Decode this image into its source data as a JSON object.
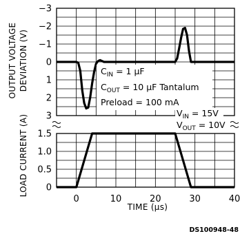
{
  "chart_data": [
    {
      "type": "line",
      "xlabel": "",
      "ylabel": "OUTPUT VOLTAGE\nDEVIATION (V)",
      "xlim": [
        -5,
        40
      ],
      "ylim": [
        -3,
        3
      ],
      "y_ticks": [
        -3,
        -2,
        -1,
        0,
        1,
        2,
        3
      ],
      "grid": true,
      "series": [
        {
          "x": [
            -5,
            0,
            0.5,
            1,
            1.5,
            2,
            2.5,
            3,
            3.5,
            4,
            4.5,
            5,
            5.5,
            6,
            6.5,
            7,
            8,
            25,
            25.5,
            26,
            26.5,
            27,
            27.5,
            28,
            28.5,
            29,
            40
          ],
          "values": [
            0,
            0,
            -0.05,
            -0.5,
            -1.6,
            -2.3,
            -2.6,
            -2.55,
            -2.0,
            -1.2,
            -0.55,
            -0.1,
            0.05,
            0.1,
            0.05,
            0,
            0,
            0,
            0.2,
            0.75,
            1.35,
            1.85,
            1.9,
            1.5,
            0.6,
            0,
            0
          ]
        }
      ]
    },
    {
      "type": "line",
      "xlabel": "TIME (μs)",
      "ylabel": "LOAD CURRENT (A)",
      "xlim": [
        -5,
        40
      ],
      "ylim": [
        0,
        1.5
      ],
      "x_ticks": [
        0,
        10,
        20,
        30,
        40
      ],
      "x_tick_labels": [
        "0",
        "10",
        "20",
        "30",
        "40"
      ],
      "y_ticks": [
        0,
        0.5,
        1,
        1.5
      ],
      "y_tick_labels": [
        "0",
        "0.5",
        "1.0",
        "1.5"
      ],
      "grid": true,
      "series": [
        {
          "x": [
            -5,
            0,
            4,
            25,
            29,
            40
          ],
          "values": [
            0,
            0,
            1.5,
            1.5,
            0,
            0
          ]
        }
      ]
    }
  ],
  "top_y_tick_labels": [
    "3",
    "2",
    "1",
    "0",
    "−1",
    "−2",
    "−3"
  ],
  "annotations": {
    "cin_pre": "C",
    "cin_sub": "IN",
    "cin_post": " = 1 μF",
    "cout_pre": "C",
    "cout_sub": "OUT",
    "cout_post": " = 10 μF Tantalum",
    "preload": "Preload = 100 mA",
    "vin_pre": "V",
    "vin_sub": "IN",
    "vin_post": " = 15V",
    "vout_pre": "V",
    "vout_sub": "OUT",
    "vout_post": " = 10V"
  },
  "labels": {
    "top_ylabel_line1": "OUTPUT VOLTAGE",
    "top_ylabel_line2": "DEVIATION (V)",
    "bottom_ylabel": "LOAD CURRENT (A)",
    "xlabel": "TIME (μs)",
    "figure_id": "DS100948-48"
  }
}
